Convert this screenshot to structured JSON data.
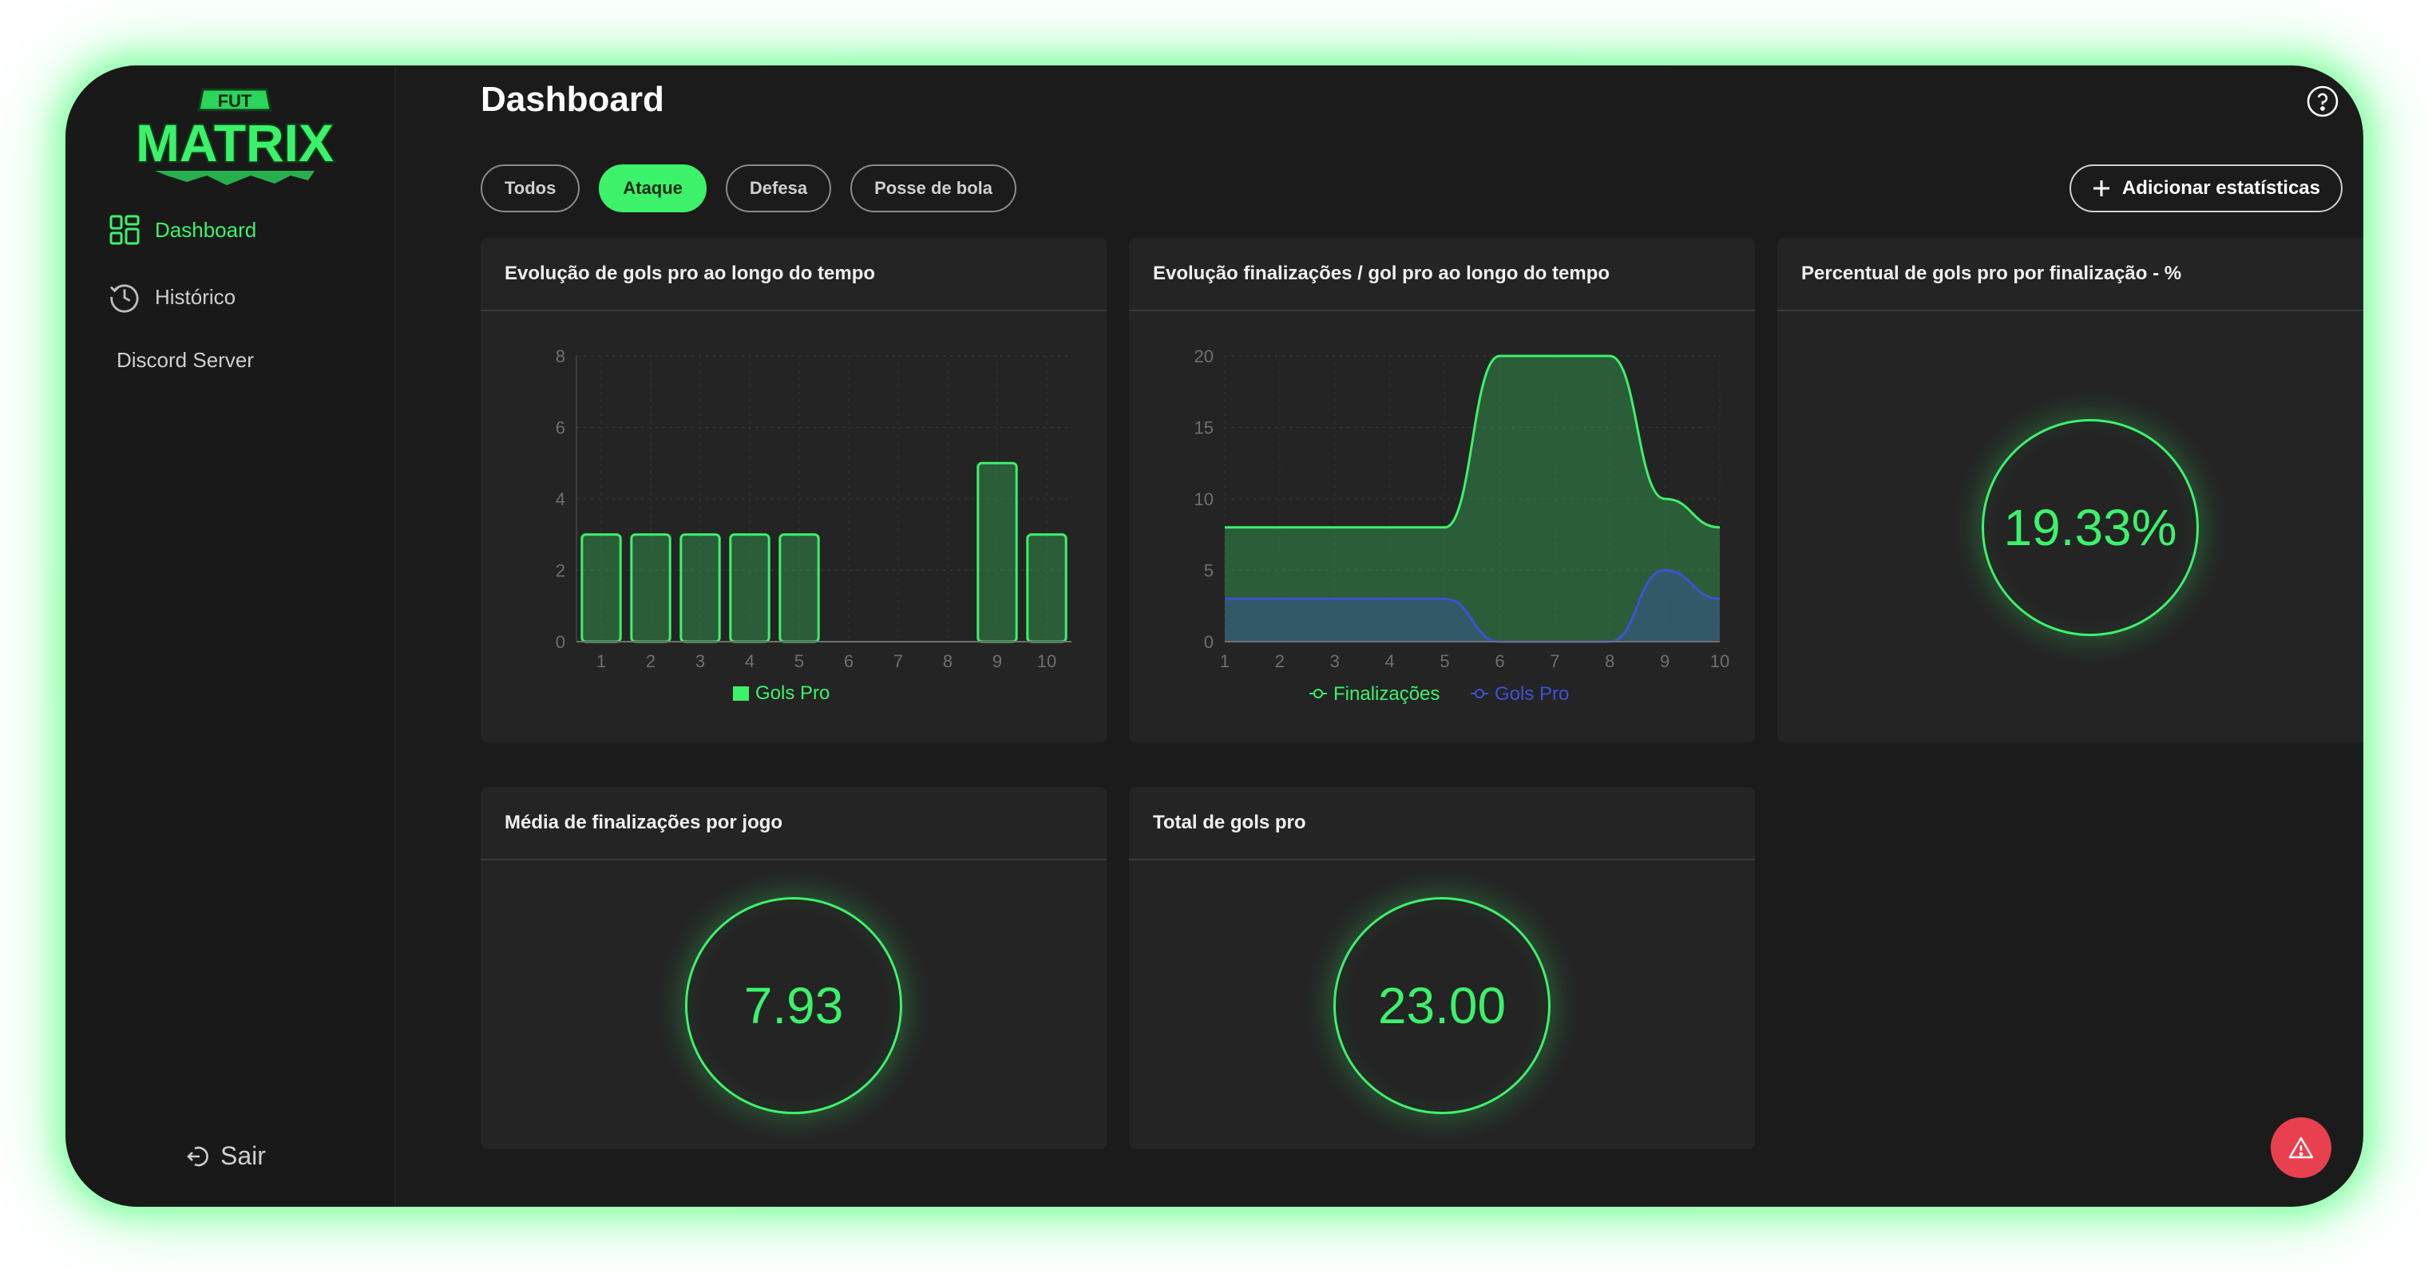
{
  "app": {
    "logo_top": "FUT",
    "logo_main": "MATRIX"
  },
  "sidebar": {
    "items": [
      {
        "label": "Dashboard",
        "icon": "dashboard-grid-icon",
        "active": true
      },
      {
        "label": "Histórico",
        "icon": "history-icon",
        "active": false
      },
      {
        "label": "Discord Server",
        "icon": "",
        "active": false
      }
    ],
    "logout_label": "Sair"
  },
  "header": {
    "title": "Dashboard",
    "help_icon": "help-circle-icon"
  },
  "filters": [
    {
      "label": "Todos",
      "active": false
    },
    {
      "label": "Ataque",
      "active": true
    },
    {
      "label": "Defesa",
      "active": false
    },
    {
      "label": "Posse de bola",
      "active": false
    }
  ],
  "actions": {
    "add_label": "Adicionar estatísticas"
  },
  "colors": {
    "accent": "#3cf26b",
    "blue": "#3f51d6",
    "background": "#1b1b1b",
    "card": "#242424",
    "danger": "#e8404f"
  },
  "cards": {
    "goals_over_time": {
      "title": "Evolução de gols pro ao longo do tempo"
    },
    "shots_over_time": {
      "title": "Evolução finalizações / gol pro ao longo do tempo"
    },
    "goal_pct": {
      "title": "Percentual de gols pro por finalização - %",
      "value": "19.33%"
    },
    "avg_shots": {
      "title": "Média de finalizações por jogo",
      "value": "7.93"
    },
    "total_goals": {
      "title": "Total de gols pro",
      "value": "23.00"
    }
  },
  "chart_data": [
    {
      "type": "bar",
      "categories": [
        "1",
        "2",
        "3",
        "4",
        "5",
        "6",
        "7",
        "8",
        "9",
        "10"
      ],
      "series": [
        {
          "name": "Gols Pro",
          "values": [
            3,
            3,
            3,
            3,
            3,
            0,
            0,
            0,
            5,
            3
          ]
        }
      ],
      "ylim": [
        0,
        8
      ],
      "yticks": [
        0,
        2,
        4,
        6,
        8
      ],
      "grid": true,
      "legend": "bottom"
    },
    {
      "type": "area",
      "x": [
        "1",
        "2",
        "3",
        "4",
        "5",
        "6",
        "7",
        "8",
        "9",
        "10"
      ],
      "series": [
        {
          "name": "Finalizações",
          "values": [
            8,
            8,
            8,
            8,
            8,
            20,
            20,
            20,
            10,
            8
          ]
        },
        {
          "name": "Gols Pro",
          "values": [
            3,
            3,
            3,
            3,
            3,
            0,
            0,
            0,
            5,
            3
          ]
        }
      ],
      "ylim": [
        0,
        20
      ],
      "yticks": [
        0,
        5,
        10,
        15,
        20
      ],
      "grid": true,
      "legend": "bottom"
    }
  ]
}
